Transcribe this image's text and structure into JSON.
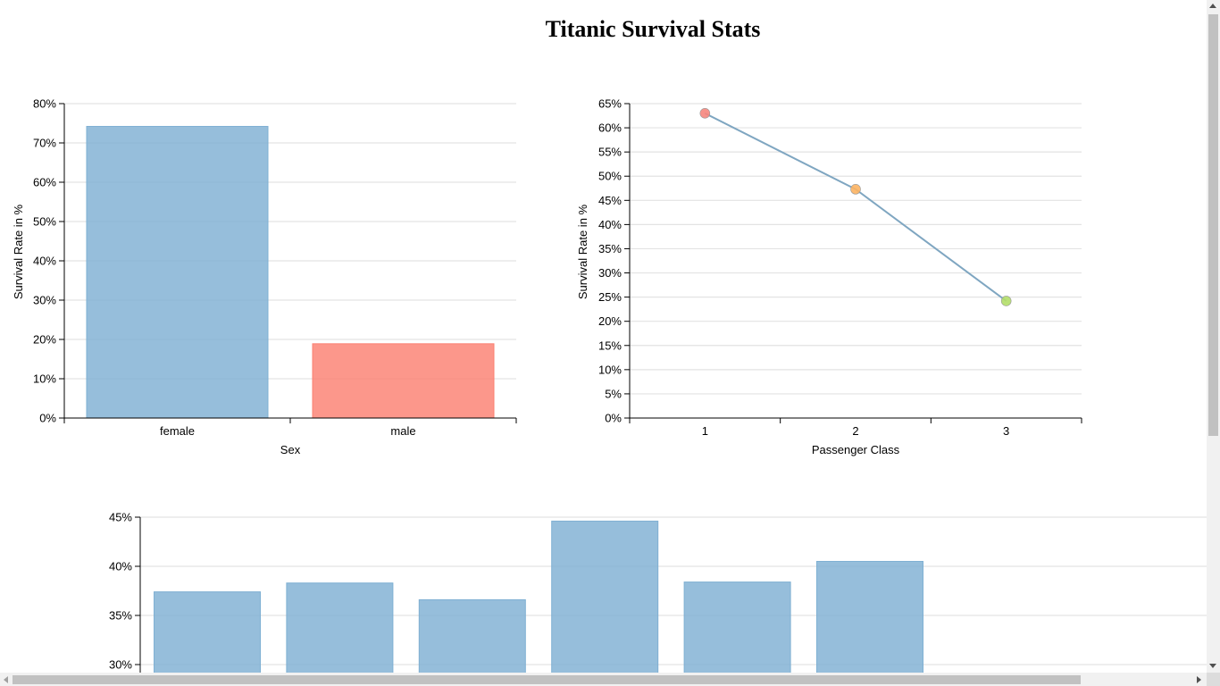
{
  "page": {
    "title": "Titanic Survival Stats"
  },
  "chart_data": [
    {
      "type": "bar",
      "title": "",
      "xlabel": "Sex",
      "ylabel": "Survival Rate in %",
      "categories": [
        "female",
        "male"
      ],
      "values": [
        74.2,
        18.9
      ],
      "colors": [
        "#7fb0d3",
        "#fb8072"
      ],
      "ylim": [
        0,
        80
      ],
      "yticks": [
        0,
        10,
        20,
        30,
        40,
        50,
        60,
        70,
        80
      ],
      "ytick_format": "%",
      "grid": true
    },
    {
      "type": "line",
      "title": "",
      "xlabel": "Passenger Class",
      "ylabel": "Survival Rate in %",
      "x": [
        "1",
        "2",
        "3"
      ],
      "values": [
        63.0,
        47.3,
        24.2
      ],
      "line_color": "#7fa6c1",
      "point_colors": [
        "#f6867d",
        "#fdb462",
        "#b3de69"
      ],
      "ylim": [
        0,
        65
      ],
      "yticks": [
        0,
        5,
        10,
        15,
        20,
        25,
        30,
        35,
        40,
        45,
        50,
        55,
        60,
        65
      ],
      "ytick_format": "%",
      "grid": true
    },
    {
      "type": "bar",
      "title": "",
      "xlabel": "",
      "ylabel": "",
      "values": [
        37.4,
        38.3,
        36.6,
        44.6,
        38.4,
        40.5
      ],
      "color": "#7fb0d3",
      "ylim": [
        30,
        45
      ],
      "yticks": [
        30,
        35,
        40,
        45
      ],
      "ytick_format": "%",
      "grid": true
    }
  ]
}
